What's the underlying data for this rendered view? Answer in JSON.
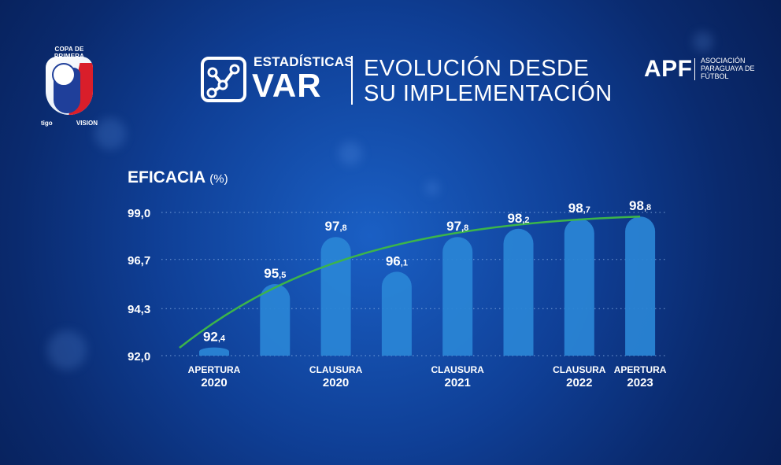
{
  "badge": {
    "top_text": "COPA DE PRIMERA",
    "sponsor_left": "tigo",
    "sponsor_right": "VISION"
  },
  "header": {
    "title_small": "ESTADÍSTICAS",
    "title_big": "VAR",
    "subtitle_line1": "EVOLUCIÓN DESDE",
    "subtitle_line2": "SU IMPLEMENTACIÓN",
    "org_logo": "APF",
    "org_name": "ASOCIACIÓN PARAGUAYA DE FÚTBOL"
  },
  "chart_label": {
    "metric": "EFICACIA",
    "unit": "(%)"
  },
  "colors": {
    "bar": "#2a86d6",
    "trend": "#3cb54a",
    "grid": "#8fb6ea"
  },
  "chart_data": {
    "type": "bar",
    "categories": [
      {
        "line1": "APERTURA",
        "line2": "2020"
      },
      {
        "line1": "",
        "line2": ""
      },
      {
        "line1": "CLAUSURA",
        "line2": "2020"
      },
      {
        "line1": "",
        "line2": ""
      },
      {
        "line1": "CLAUSURA",
        "line2": "2021"
      },
      {
        "line1": "",
        "line2": ""
      },
      {
        "line1": "CLAUSURA",
        "line2": "2022"
      },
      {
        "line1": "APERTURA",
        "line2": "2023"
      }
    ],
    "values": [
      92.4,
      95.5,
      97.8,
      96.1,
      97.8,
      98.2,
      98.7,
      98.8
    ],
    "value_labels": [
      {
        "int": "92",
        "dec": ",4"
      },
      {
        "int": "95",
        "dec": ",5"
      },
      {
        "int": "97",
        "dec": ",8"
      },
      {
        "int": "96",
        "dec": ",1"
      },
      {
        "int": "97",
        "dec": ",8"
      },
      {
        "int": "98",
        "dec": ",2"
      },
      {
        "int": "98",
        "dec": ",7"
      },
      {
        "int": "98",
        "dec": ",8"
      }
    ],
    "yticks": [
      {
        "value": 99.0,
        "label": "99,0"
      },
      {
        "value": 96.7,
        "label": "96,7"
      },
      {
        "value": 94.3,
        "label": "94,3"
      },
      {
        "value": 92.0,
        "label": "92,0"
      }
    ],
    "ylim": [
      92.0,
      99.0
    ],
    "trend_line": true,
    "grid": "dotted-horizontal",
    "legend": "none"
  }
}
